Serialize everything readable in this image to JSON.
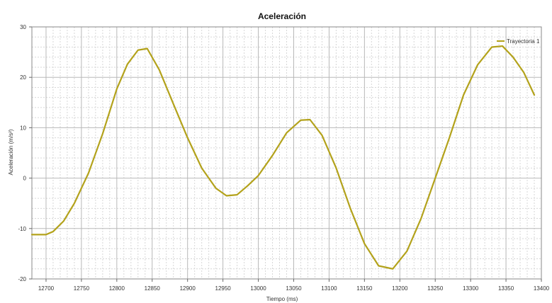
{
  "chart_data": {
    "type": "line",
    "title": "Aceleración",
    "xlabel": "Tiempo (ms)",
    "ylabel": "Aceleración (m/s²)",
    "xlim": [
      12680,
      13400
    ],
    "ylim": [
      -20,
      30
    ],
    "grid": true,
    "legend_position": "top-right",
    "x_ticks": [
      12700,
      12750,
      12800,
      12850,
      12900,
      12950,
      13000,
      13050,
      13100,
      13150,
      13200,
      13250,
      13300,
      13350,
      13400
    ],
    "y_ticks": [
      -20,
      -10,
      0,
      10,
      20,
      30
    ],
    "x_tick_labels": [
      "12700",
      "12750",
      "12800",
      "12850",
      "12900",
      "12950",
      "13000",
      "13050",
      "13100",
      "13150",
      "13200",
      "13250",
      "13300",
      "13350",
      "13400"
    ],
    "y_tick_labels": [
      "-20",
      "-10",
      "0",
      "10",
      "20",
      "30"
    ],
    "series": [
      {
        "name": "Trayectoria 1",
        "color": "#b3a21b",
        "points": [
          [
            12680,
            -11.2
          ],
          [
            12700,
            -11.2
          ],
          [
            12710,
            -10.6
          ],
          [
            12725,
            -8.5
          ],
          [
            12740,
            -5.0
          ],
          [
            12760,
            1.0
          ],
          [
            12780,
            8.8
          ],
          [
            12800,
            17.7
          ],
          [
            12815,
            22.6
          ],
          [
            12830,
            25.4
          ],
          [
            12843,
            25.7
          ],
          [
            12860,
            21.5
          ],
          [
            12880,
            14.7
          ],
          [
            12900,
            8.0
          ],
          [
            12920,
            2.0
          ],
          [
            12940,
            -2.0
          ],
          [
            12955,
            -3.5
          ],
          [
            12970,
            -3.3
          ],
          [
            12985,
            -1.5
          ],
          [
            13000,
            0.5
          ],
          [
            13020,
            4.5
          ],
          [
            13040,
            9.0
          ],
          [
            13060,
            11.5
          ],
          [
            13073,
            11.6
          ],
          [
            13090,
            8.5
          ],
          [
            13110,
            2.0
          ],
          [
            13130,
            -6.0
          ],
          [
            13150,
            -13.0
          ],
          [
            13170,
            -17.4
          ],
          [
            13190,
            -18.0
          ],
          [
            13210,
            -14.5
          ],
          [
            13230,
            -8.0
          ],
          [
            13250,
            0.0
          ],
          [
            13270,
            8.0
          ],
          [
            13290,
            16.5
          ],
          [
            13310,
            22.5
          ],
          [
            13330,
            26.0
          ],
          [
            13345,
            26.2
          ],
          [
            13360,
            24.0
          ],
          [
            13375,
            21.0
          ],
          [
            13390,
            16.5
          ]
        ]
      }
    ]
  }
}
